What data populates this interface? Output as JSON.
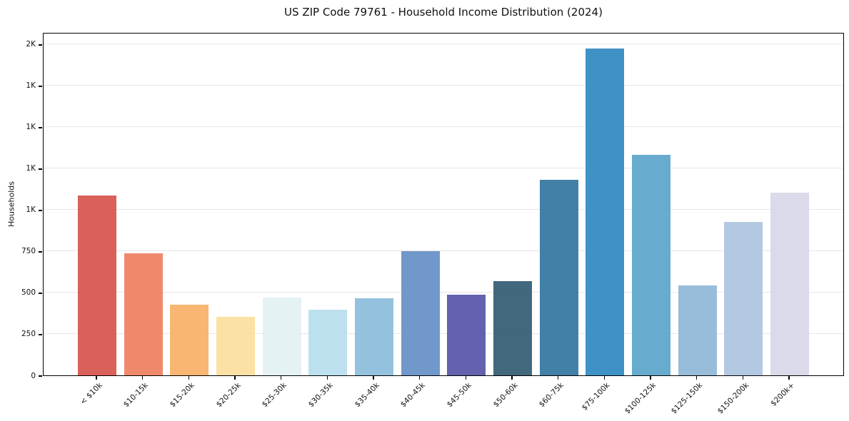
{
  "figure": {
    "background": "#ffffff",
    "axis_color": "#000000",
    "text_color": "#111111"
  },
  "chart_data": {
    "type": "bar",
    "title": "US ZIP Code 79761 - Household Income Distribution (2024)",
    "xlabel": "",
    "ylabel": "Households",
    "categories": [
      "< $10k",
      "$10-15k",
      "$15-20k",
      "$20-25k",
      "$25-30k",
      "$30-35k",
      "$35-40k",
      "$40-45k",
      "$45-50k",
      "$50-60k",
      "$60-75k",
      "$75-100k",
      "$100-125k",
      "$125-150k",
      "$150-200k",
      "$200k+"
    ],
    "values": [
      1085,
      735,
      425,
      355,
      470,
      395,
      465,
      750,
      485,
      570,
      1180,
      1975,
      1330,
      545,
      925,
      1105
    ],
    "bar_colors": [
      "#d95b52",
      "#ef8466",
      "#f9b36d",
      "#fce0a0",
      "#e4f1f3",
      "#badfee",
      "#90c0dd",
      "#6b94c8",
      "#5d5cab",
      "#3a6278",
      "#397ba3",
      "#378ec3",
      "#61a8cc",
      "#94bad9",
      "#b0c6e0",
      "#d8d9e9"
    ],
    "ylim": [
      0,
      2073
    ],
    "ytick_values": [
      0,
      250,
      500,
      750,
      1000,
      1250,
      1500,
      1750,
      2000
    ],
    "ytick_labels": [
      "0",
      "250",
      "500",
      "750",
      "1K",
      "1K",
      "1K",
      "1K",
      "2K"
    ],
    "grid": {
      "axis": "y",
      "color": "#e7e7e7"
    },
    "legend": "none"
  }
}
